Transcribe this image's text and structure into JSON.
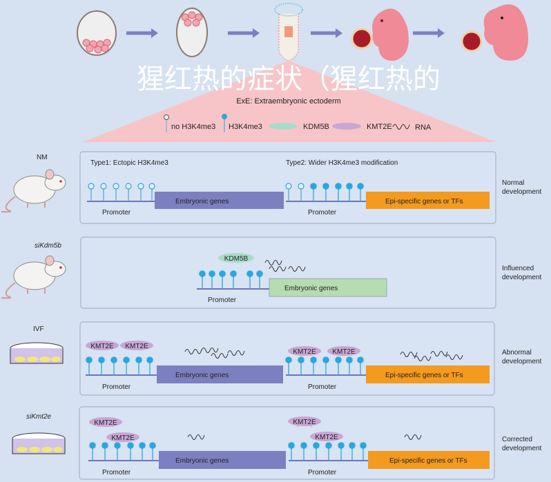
{
  "legend": {
    "title": "ExE: Extraembryonic ectoderm",
    "no_h3k4me3": "no H3K4me3",
    "h3k4me3": "H3K4me3",
    "kdm5b": "KDM5B",
    "kmt2e": "KMT2E",
    "rna": "RNA"
  },
  "colors": {
    "background": "#d6e1f1",
    "embryonic_bar": "#7c80c0",
    "epi_bar": "#f39a1f",
    "embryonic_bar_si_kdm5b": "#b6dcb1",
    "lollipop": "#2aa7de",
    "triangle": "#f7c5c8",
    "kmt2e": "#c9a6d4",
    "kdm5b": "#a8dcc8"
  },
  "rows": [
    {
      "condition": "NM",
      "type1": "Type1: Ectopic H3K4me3",
      "type2": "Type2: Wider H3K4me3 modification",
      "promoter": "Promoter",
      "gene1": "Embryonic genes",
      "gene2": "Epi-specific genes or TFs",
      "outcome_1": "Normal",
      "outcome_2": "development"
    },
    {
      "condition": "siKdm5b",
      "kdm5b": "KDM5B",
      "promoter": "Promoter",
      "gene1": "Embryonic genes",
      "outcome_1": "Influenced",
      "outcome_2": "development"
    },
    {
      "condition": "IVF",
      "kmt2e": "KMT2E",
      "promoter": "Promoter",
      "gene1": "Embryonic genes",
      "gene2": "Epi-specific genes or TFs",
      "outcome_1": "Abnormal",
      "outcome_2": "development"
    },
    {
      "condition": "siKmt2e",
      "kmt2e": "KMT2E",
      "promoter": "Promoter",
      "gene1": "Embryonic genes",
      "gene2": "Epi-specific genes or TFs",
      "outcome_1": "Corrected",
      "outcome_2": "development"
    }
  ],
  "watermark": "猩红热的症状（猩红热的"
}
